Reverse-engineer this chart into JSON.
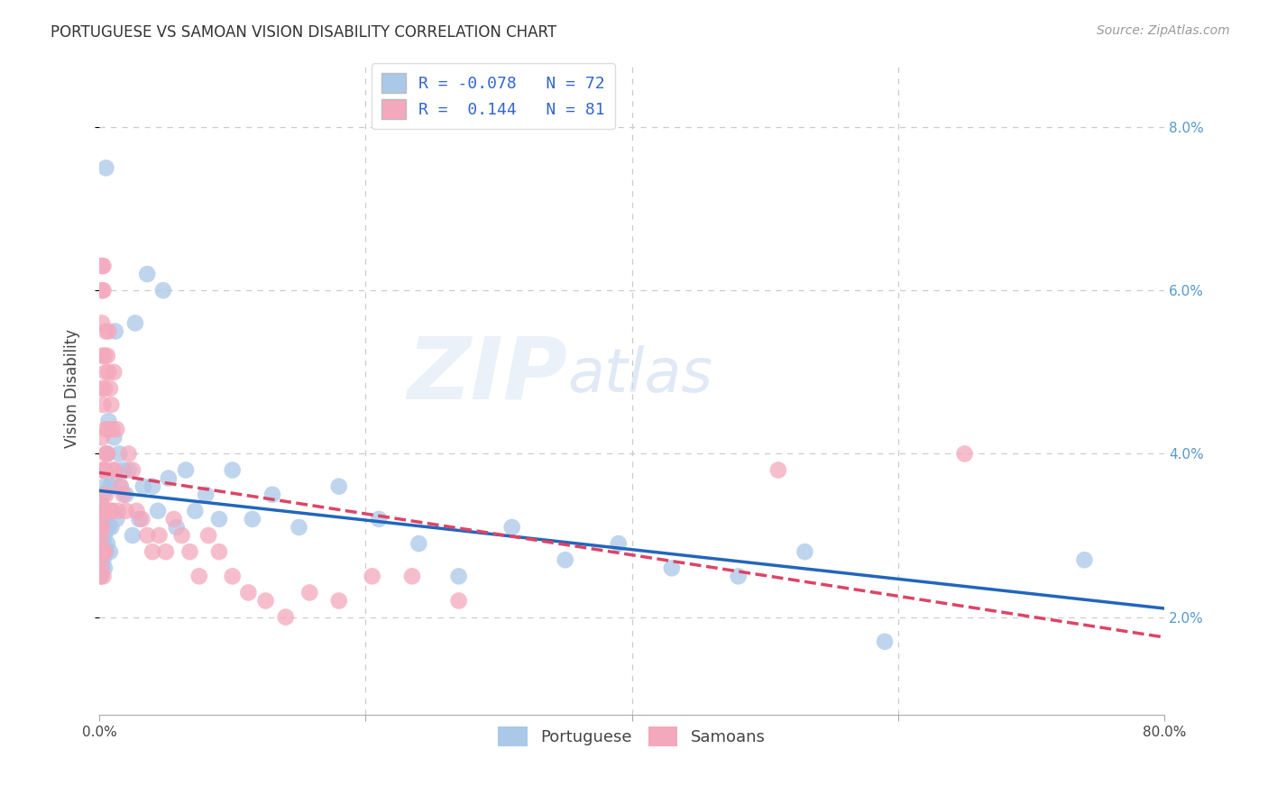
{
  "title": "PORTUGUESE VS SAMOAN VISION DISABILITY CORRELATION CHART",
  "source": "Source: ZipAtlas.com",
  "ylabel": "Vision Disability",
  "xlim": [
    0.0,
    0.8
  ],
  "ylim": [
    0.008,
    0.088
  ],
  "yticks": [
    0.02,
    0.04,
    0.06,
    0.08
  ],
  "ytick_labels": [
    "2.0%",
    "4.0%",
    "6.0%",
    "8.0%"
  ],
  "xticks": [
    0.0,
    0.2,
    0.4,
    0.6,
    0.8
  ],
  "xtick_labels": [
    "0.0%",
    "",
    "",
    "",
    "80.0%"
  ],
  "portuguese_color": "#aac8e8",
  "samoan_color": "#f4a8bc",
  "portuguese_line_color": "#2266bb",
  "samoan_line_color": "#dd4466",
  "R_portuguese": -0.078,
  "N_portuguese": 72,
  "R_samoan": 0.144,
  "N_samoan": 81,
  "legend_entries": [
    "Portuguese",
    "Samoans"
  ],
  "watermark_zip": "ZIP",
  "watermark_atlas": "atlas",
  "background_color": "#ffffff",
  "grid_color": "#cccccc",
  "title_color": "#333333",
  "axis_label_color": "#444444",
  "portuguese_x": [
    0.001,
    0.001,
    0.001,
    0.001,
    0.001,
    0.002,
    0.002,
    0.002,
    0.002,
    0.002,
    0.002,
    0.003,
    0.003,
    0.003,
    0.003,
    0.003,
    0.004,
    0.004,
    0.004,
    0.004,
    0.004,
    0.005,
    0.005,
    0.005,
    0.005,
    0.006,
    0.006,
    0.007,
    0.007,
    0.008,
    0.008,
    0.009,
    0.01,
    0.01,
    0.011,
    0.012,
    0.013,
    0.015,
    0.016,
    0.018,
    0.02,
    0.022,
    0.025,
    0.027,
    0.03,
    0.033,
    0.036,
    0.04,
    0.044,
    0.048,
    0.052,
    0.058,
    0.065,
    0.072,
    0.08,
    0.09,
    0.1,
    0.115,
    0.13,
    0.15,
    0.18,
    0.21,
    0.24,
    0.27,
    0.31,
    0.35,
    0.39,
    0.43,
    0.48,
    0.53,
    0.59,
    0.74
  ],
  "portuguese_y": [
    0.03,
    0.027,
    0.032,
    0.025,
    0.034,
    0.029,
    0.031,
    0.026,
    0.033,
    0.028,
    0.03,
    0.035,
    0.027,
    0.031,
    0.029,
    0.033,
    0.028,
    0.03,
    0.032,
    0.026,
    0.036,
    0.075,
    0.031,
    0.028,
    0.033,
    0.04,
    0.029,
    0.044,
    0.031,
    0.036,
    0.028,
    0.031,
    0.033,
    0.037,
    0.042,
    0.055,
    0.032,
    0.04,
    0.036,
    0.038,
    0.035,
    0.038,
    0.03,
    0.056,
    0.032,
    0.036,
    0.062,
    0.036,
    0.033,
    0.06,
    0.037,
    0.031,
    0.038,
    0.033,
    0.035,
    0.032,
    0.038,
    0.032,
    0.035,
    0.031,
    0.036,
    0.032,
    0.029,
    0.025,
    0.031,
    0.027,
    0.029,
    0.026,
    0.025,
    0.028,
    0.017,
    0.027
  ],
  "samoan_x": [
    0.001,
    0.001,
    0.001,
    0.001,
    0.001,
    0.001,
    0.001,
    0.001,
    0.001,
    0.001,
    0.002,
    0.002,
    0.002,
    0.002,
    0.002,
    0.002,
    0.002,
    0.002,
    0.002,
    0.002,
    0.003,
    0.003,
    0.003,
    0.003,
    0.003,
    0.003,
    0.003,
    0.004,
    0.004,
    0.004,
    0.004,
    0.004,
    0.005,
    0.005,
    0.005,
    0.005,
    0.005,
    0.006,
    0.006,
    0.006,
    0.007,
    0.007,
    0.007,
    0.008,
    0.008,
    0.009,
    0.009,
    0.01,
    0.01,
    0.011,
    0.012,
    0.013,
    0.014,
    0.016,
    0.018,
    0.02,
    0.022,
    0.025,
    0.028,
    0.032,
    0.036,
    0.04,
    0.045,
    0.05,
    0.056,
    0.062,
    0.068,
    0.075,
    0.082,
    0.09,
    0.1,
    0.112,
    0.125,
    0.14,
    0.158,
    0.18,
    0.205,
    0.235,
    0.27,
    0.51,
    0.65
  ],
  "samoan_y": [
    0.03,
    0.028,
    0.032,
    0.025,
    0.027,
    0.033,
    0.029,
    0.031,
    0.026,
    0.034,
    0.063,
    0.06,
    0.048,
    0.038,
    0.033,
    0.042,
    0.052,
    0.056,
    0.031,
    0.028,
    0.063,
    0.06,
    0.046,
    0.038,
    0.033,
    0.028,
    0.025,
    0.052,
    0.048,
    0.038,
    0.033,
    0.028,
    0.055,
    0.043,
    0.05,
    0.04,
    0.035,
    0.052,
    0.04,
    0.033,
    0.05,
    0.043,
    0.055,
    0.048,
    0.033,
    0.046,
    0.033,
    0.043,
    0.038,
    0.05,
    0.038,
    0.043,
    0.033,
    0.036,
    0.035,
    0.033,
    0.04,
    0.038,
    0.033,
    0.032,
    0.03,
    0.028,
    0.03,
    0.028,
    0.032,
    0.03,
    0.028,
    0.025,
    0.03,
    0.028,
    0.025,
    0.023,
    0.022,
    0.02,
    0.023,
    0.022,
    0.025,
    0.025,
    0.022,
    0.038,
    0.04
  ]
}
